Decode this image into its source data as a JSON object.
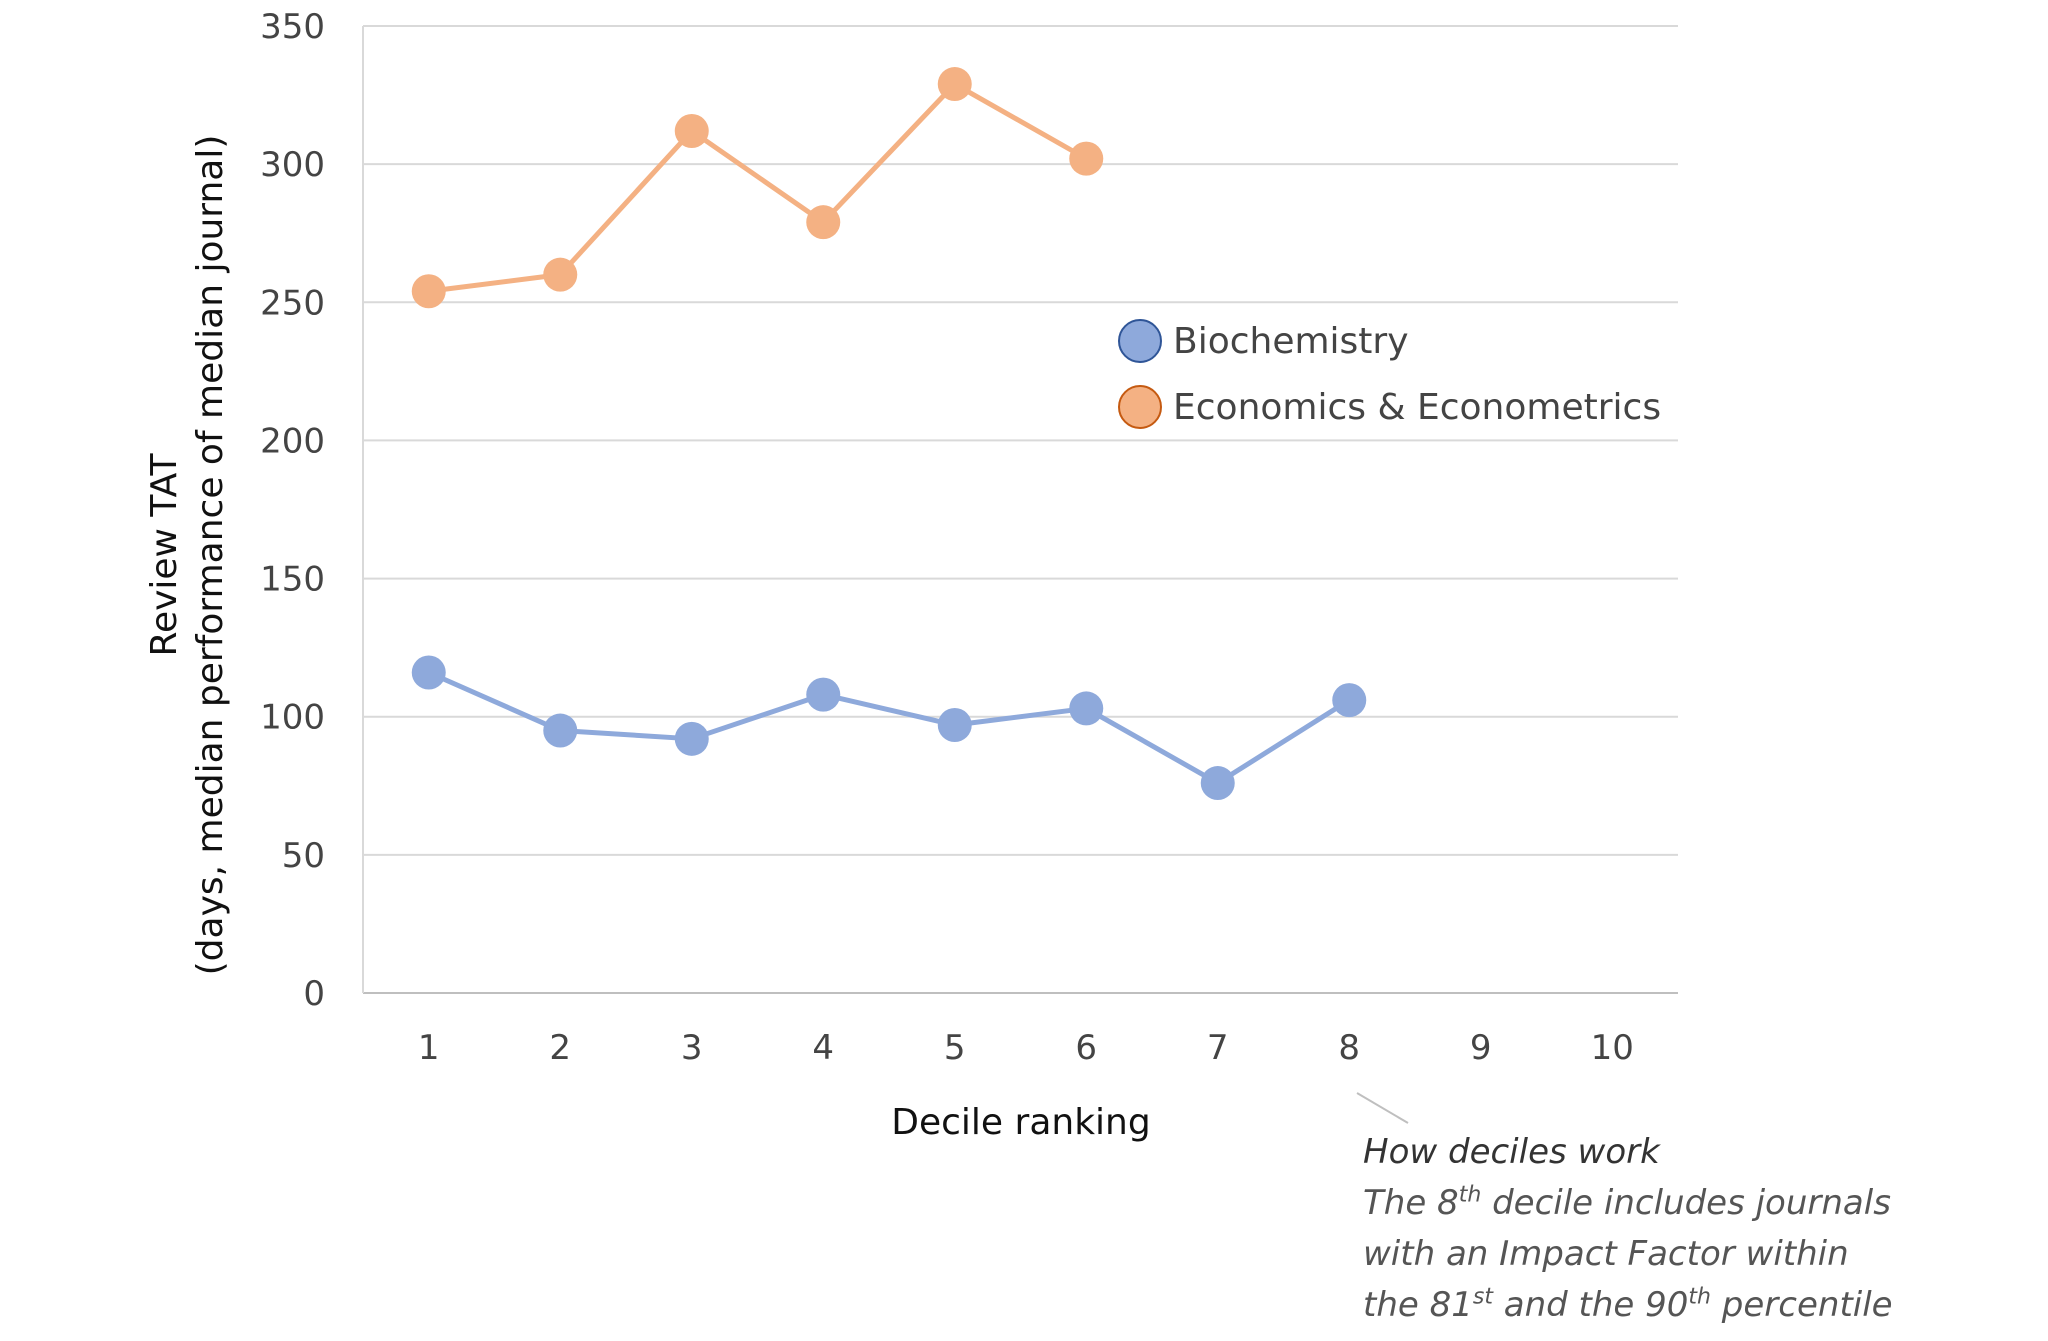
{
  "chart_data": {
    "type": "line",
    "categories": [
      "1",
      "2",
      "3",
      "4",
      "5",
      "6",
      "7",
      "8",
      "9",
      "10"
    ],
    "series": [
      {
        "name": "Biochemistry",
        "color": "#8EA9DB",
        "values": [
          116,
          95,
          92,
          108,
          97,
          103,
          76,
          106,
          null,
          null
        ]
      },
      {
        "name": "Economics & Econometrics",
        "color": "#F4B183",
        "values": [
          254,
          260,
          312,
          279,
          329,
          302,
          null,
          null,
          null,
          null
        ]
      }
    ],
    "ylim": [
      0,
      350
    ],
    "yticks": [
      "0",
      "50",
      "100",
      "150",
      "200",
      "250",
      "300",
      "350"
    ],
    "xlabel": "Decile ranking",
    "ylabel_line1": "Review TAT",
    "ylabel_line2": "(days, median performance of median journal)",
    "grid": true,
    "legend_position": "right-inside",
    "annotation": {
      "title": "How deciles work",
      "line1_a": "The 8",
      "line1_sup": "th",
      "line1_b": " decile includes journals",
      "line2": "with an Impact Factor within",
      "line3_a": "the 81",
      "line3_sup1": "st",
      "line3_b": " and the 90",
      "line3_sup2": "th",
      "line3_c": " percentile"
    }
  }
}
